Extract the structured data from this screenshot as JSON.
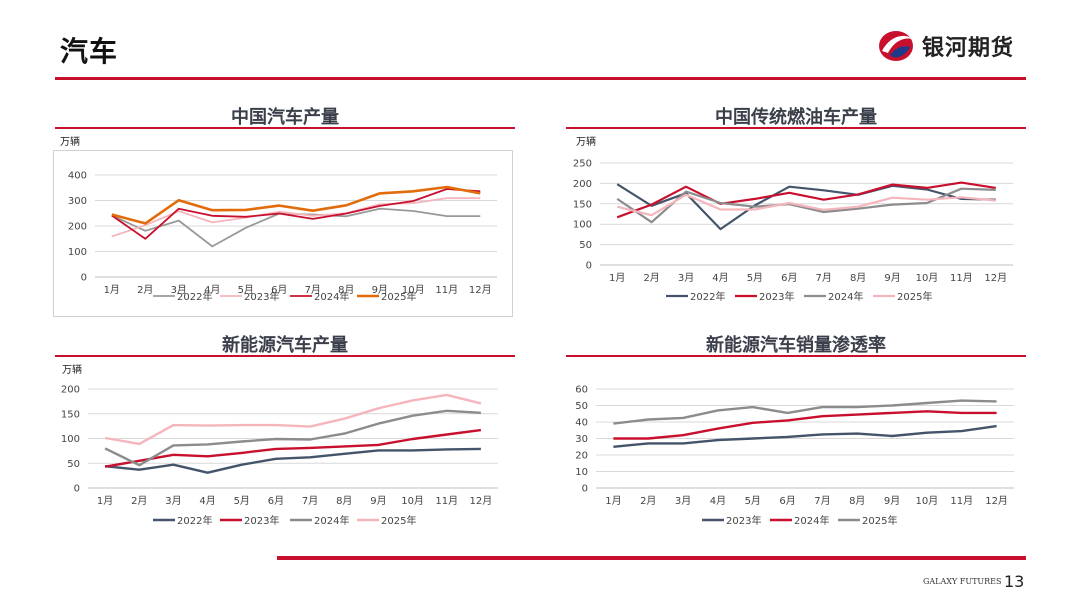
{
  "page": {
    "title": "汽车",
    "brand_name": "银河期货",
    "footer_brand": "GALAXY FUTURES",
    "page_number": "13"
  },
  "colors": {
    "accent": "#c8102e",
    "s2022": "#44546a",
    "s2023": "#c8102e",
    "s2024": "#8c8c8c",
    "s2025": "#f4b6bc",
    "chart1_2025": "#e36c0a"
  },
  "chart_data": [
    {
      "type": "line",
      "title": "中国汽车产量",
      "unit": "万辆",
      "categories": [
        "1月",
        "2月",
        "3月",
        "4月",
        "5月",
        "6月",
        "7月",
        "8月",
        "9月",
        "10月",
        "11月",
        "12月"
      ],
      "ylim": [
        0,
        400
      ],
      "yticks": [
        0,
        100,
        200,
        300,
        400
      ],
      "series": [
        {
          "name": "2022年",
          "color": "#999999",
          "values": [
            241,
            181,
            221,
            120,
            193,
            249,
            245,
            238,
            268,
            259,
            239,
            239
          ]
        },
        {
          "name": "2023年",
          "color": "#f4b6bc",
          "values": [
            159,
            203,
            258,
            214,
            233,
            256,
            240,
            250,
            285,
            290,
            309,
            309
          ]
        },
        {
          "name": "2024年",
          "color": "#c8102e",
          "values": [
            241,
            150,
            268,
            240,
            236,
            249,
            228,
            249,
            279,
            298,
            345,
            336
          ]
        },
        {
          "name": "2025年",
          "color": "#e36c0a",
          "values": [
            245,
            210,
            301,
            262,
            263,
            280,
            260,
            281,
            328,
            336,
            353,
            328
          ]
        }
      ]
    },
    {
      "type": "line",
      "title": "中国传统燃油车产量",
      "unit": "万辆",
      "categories": [
        "1月",
        "2月",
        "3月",
        "4月",
        "5月",
        "6月",
        "7月",
        "8月",
        "9月",
        "10月",
        "11月",
        "12月"
      ],
      "ylim": [
        0,
        250
      ],
      "yticks": [
        0,
        50,
        100,
        150,
        200,
        250
      ],
      "series": [
        {
          "name": "2022年",
          "color": "#44546a",
          "values": [
            198,
            145,
            176,
            88,
            146,
            192,
            183,
            172,
            194,
            185,
            162,
            160
          ]
        },
        {
          "name": "2023年",
          "color": "#c8102e",
          "values": [
            117,
            148,
            192,
            150,
            162,
            177,
            160,
            173,
            197,
            189,
            202,
            189
          ]
        },
        {
          "name": "2024年",
          "color": "#8c8c8c",
          "values": [
            162,
            105,
            180,
            152,
            143,
            149,
            130,
            138,
            148,
            152,
            187,
            184
          ]
        },
        {
          "name": "2025年",
          "color": "#f4b6bc",
          "values": [
            143,
            122,
            172,
            136,
            136,
            152,
            135,
            143,
            165,
            160,
            166,
            158
          ]
        }
      ]
    },
    {
      "type": "line",
      "title": "新能源汽车产量",
      "unit": "万辆",
      "categories": [
        "1月",
        "2月",
        "3月",
        "4月",
        "5月",
        "6月",
        "7月",
        "8月",
        "9月",
        "10月",
        "11月",
        "12月"
      ],
      "ylim": [
        0,
        200
      ],
      "yticks": [
        0,
        50,
        100,
        150,
        200
      ],
      "series": [
        {
          "name": "2022年",
          "color": "#44546a",
          "values": [
            44,
            37,
            47,
            31,
            47,
            59,
            62,
            69,
            76,
            76,
            78,
            79
          ]
        },
        {
          "name": "2023年",
          "color": "#c8102e",
          "values": [
            43,
            55,
            67,
            64,
            71,
            79,
            81,
            84,
            87,
            99,
            108,
            117
          ]
        },
        {
          "name": "2024年",
          "color": "#8c8c8c",
          "values": [
            80,
            46,
            86,
            88,
            94,
            99,
            98,
            110,
            130,
            146,
            156,
            152
          ]
        },
        {
          "name": "2025年",
          "color": "#f4b6bc",
          "values": [
            101,
            89,
            127,
            126,
            127,
            127,
            124,
            140,
            161,
            177,
            188,
            171
          ]
        }
      ]
    },
    {
      "type": "line",
      "title": "新能源汽车销量渗透率",
      "unit": "",
      "categories": [
        "1月",
        "2月",
        "3月",
        "4月",
        "5月",
        "6月",
        "7月",
        "8月",
        "9月",
        "10月",
        "11月",
        "12月"
      ],
      "ylim": [
        0,
        60
      ],
      "yticks": [
        0,
        10,
        20,
        30,
        40,
        50,
        60
      ],
      "series": [
        {
          "name": "2023年",
          "color": "#44546a",
          "values": [
            25,
            27,
            27,
            29,
            30,
            31,
            32.5,
            33,
            31.5,
            33.5,
            34.5,
            37.5
          ]
        },
        {
          "name": "2024年",
          "color": "#c8102e",
          "values": [
            30,
            30,
            32,
            36,
            39.5,
            41,
            43.5,
            44.5,
            45.5,
            46.5,
            45.5,
            45.5
          ]
        },
        {
          "name": "2025年",
          "color": "#8c8c8c",
          "values": [
            39,
            41.5,
            42.5,
            47,
            49,
            45.5,
            49,
            49,
            50,
            51.5,
            53,
            52.5
          ]
        }
      ]
    }
  ]
}
